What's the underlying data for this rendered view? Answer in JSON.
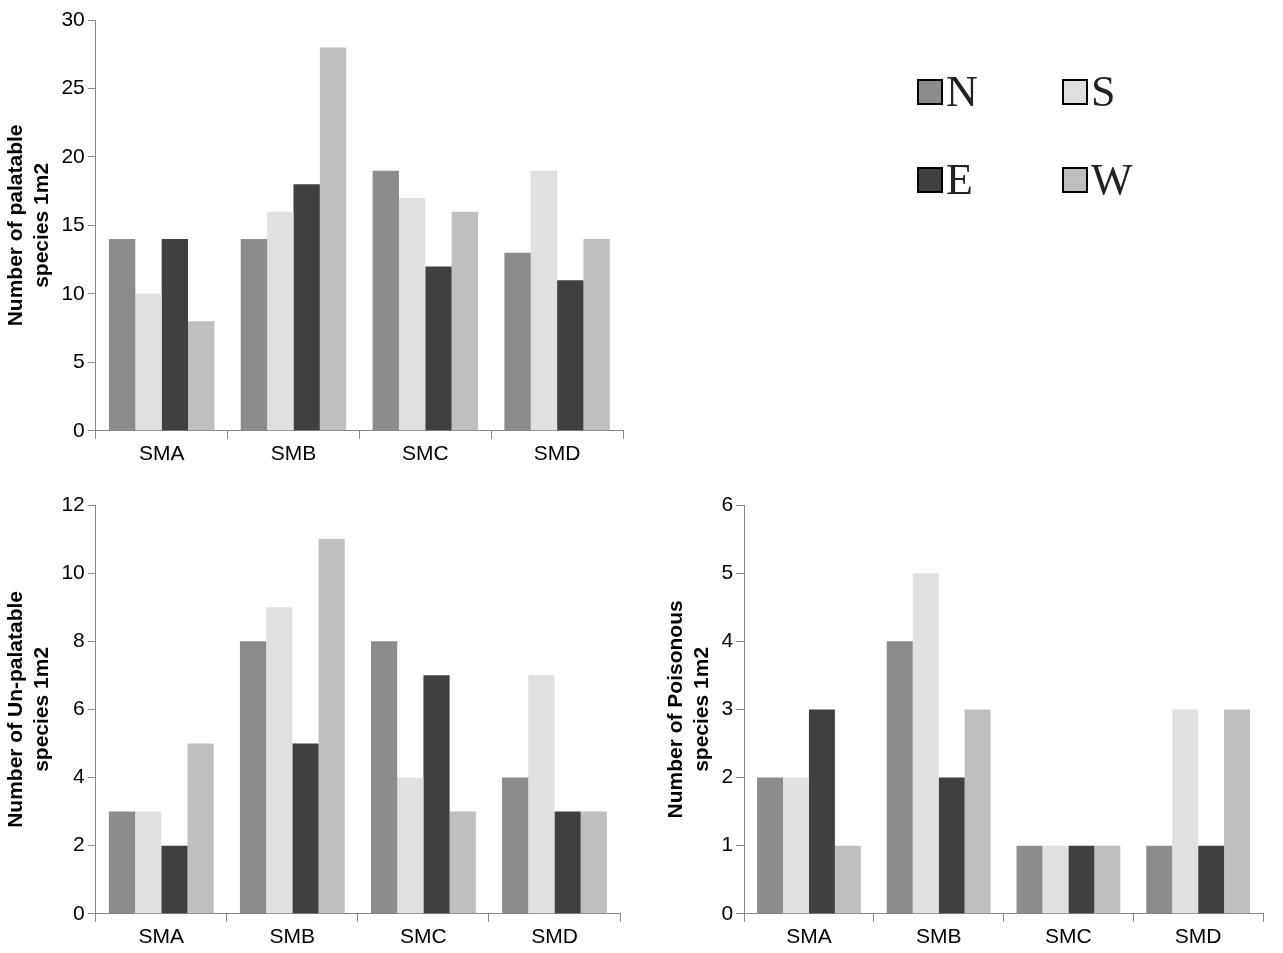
{
  "chart_data": [
    {
      "type": "bar",
      "ylabel": "Number of palatable species 1m2",
      "categories": [
        "SMA",
        "SMB",
        "SMC",
        "SMD"
      ],
      "ylim": [
        0,
        30
      ],
      "yticks": [
        0,
        5,
        10,
        15,
        20,
        25,
        30
      ],
      "grid": false,
      "legend": "right",
      "series": [
        {
          "name": "N",
          "color": "#8c8c8c",
          "values": [
            14,
            14,
            19,
            13
          ]
        },
        {
          "name": "S",
          "color": "#e0e0e0",
          "values": [
            10,
            16,
            17,
            19
          ]
        },
        {
          "name": "E",
          "color": "#404040",
          "values": [
            14,
            18,
            12,
            11
          ]
        },
        {
          "name": "W",
          "color": "#bfbfbf",
          "values": [
            8,
            28,
            16,
            14
          ]
        }
      ]
    },
    {
      "type": "bar",
      "ylabel": "Number of Un-palatable species 1m2",
      "categories": [
        "SMA",
        "SMB",
        "SMC",
        "SMD"
      ],
      "ylim": [
        0,
        12
      ],
      "yticks": [
        0,
        2,
        4,
        6,
        8,
        10,
        12
      ],
      "grid": false,
      "series": [
        {
          "color": "#8c8c8c",
          "values": [
            3,
            8,
            8,
            4
          ]
        },
        {
          "color": "#e0e0e0",
          "values": [
            3,
            9,
            4,
            7
          ]
        },
        {
          "color": "#404040",
          "values": [
            2,
            5,
            7,
            3
          ]
        },
        {
          "color": "#bfbfbf",
          "values": [
            5,
            11,
            3,
            3
          ]
        }
      ]
    },
    {
      "type": "bar",
      "ylabel": "Number of Poisonous species 1m2",
      "categories": [
        "SMA",
        "SMB",
        "SMC",
        "SMD"
      ],
      "ylim": [
        0,
        6
      ],
      "yticks": [
        0,
        1,
        2,
        3,
        4,
        5,
        6
      ],
      "grid": false,
      "series": [
        {
          "color": "#8c8c8c",
          "values": [
            2,
            4,
            1,
            1
          ]
        },
        {
          "color": "#e0e0e0",
          "values": [
            2,
            5,
            1,
            3
          ]
        },
        {
          "color": "#404040",
          "values": [
            3,
            2,
            1,
            1
          ]
        },
        {
          "color": "#bfbfbf",
          "values": [
            1,
            3,
            1,
            3
          ]
        }
      ]
    }
  ]
}
